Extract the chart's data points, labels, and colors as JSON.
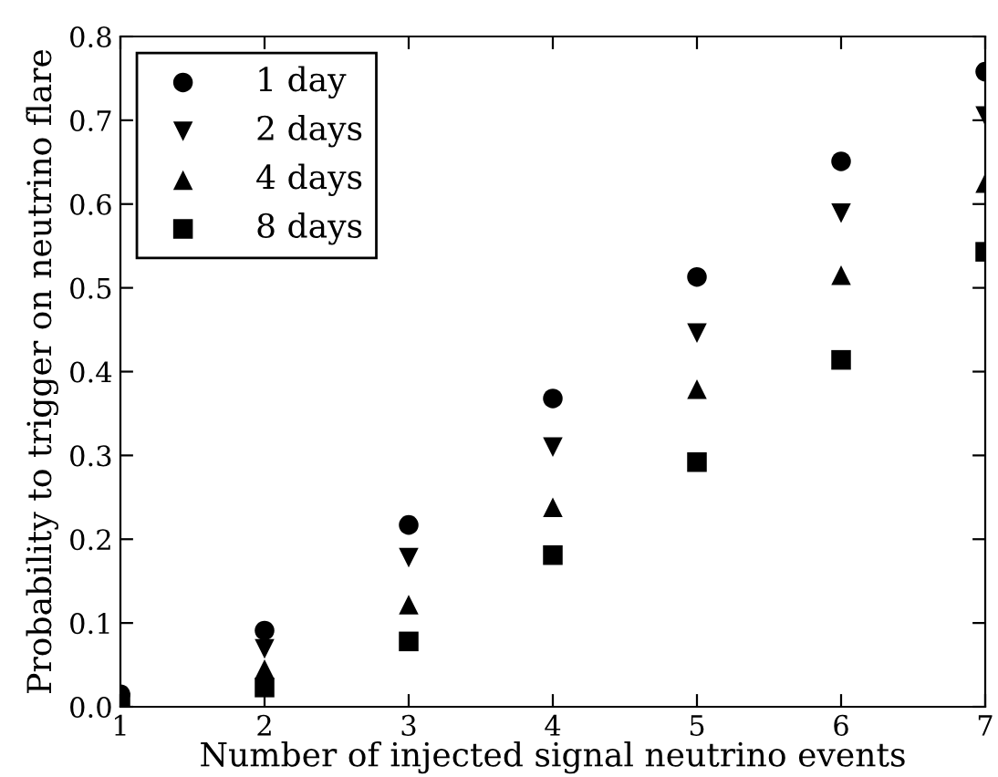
{
  "chart_data": {
    "type": "scatter",
    "xlabel": "Number of injected signal neutrino events",
    "ylabel": "Probability to trigger on neutrino flare",
    "x": [
      1,
      2,
      3,
      4,
      5,
      6,
      7
    ],
    "series": [
      {
        "name": "1 day",
        "color": "#000000",
        "marker": "circle",
        "values": [
          0.015,
          0.091,
          0.217,
          0.368,
          0.513,
          0.651,
          0.758
        ]
      },
      {
        "name": "2 days",
        "color": "#000000",
        "marker": "triangle_down",
        "values": [
          null,
          0.069,
          0.178,
          0.31,
          0.446,
          0.589,
          0.705
        ]
      },
      {
        "name": "4 days",
        "color": "#000000",
        "marker": "triangle",
        "values": [
          null,
          0.045,
          0.122,
          0.238,
          0.379,
          0.515,
          0.625
        ]
      },
      {
        "name": "8 days",
        "color": "#000000",
        "marker": "square",
        "values": [
          0.005,
          0.023,
          0.078,
          0.181,
          0.292,
          0.414,
          0.543
        ]
      }
    ],
    "xlim": [
      1,
      7
    ],
    "xticks": [
      1,
      2,
      3,
      4,
      5,
      6,
      7
    ],
    "ylim": [
      0,
      0.8
    ],
    "yticks": [
      {
        "value": 0,
        "label": "0.0"
      },
      0.1,
      0.2,
      0.3,
      0.4,
      0.5,
      0.6,
      0.7,
      0.8
    ],
    "grid": false,
    "legend": "top left"
  }
}
